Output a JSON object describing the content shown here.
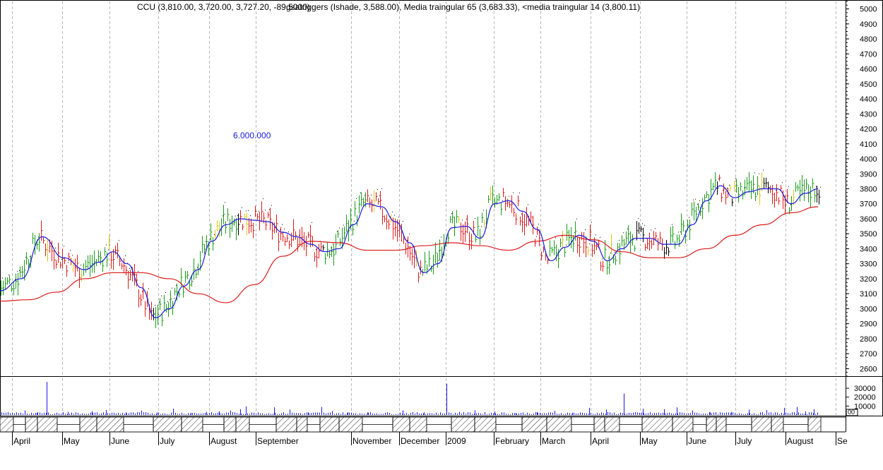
{
  "header": {
    "symbol_line": "CCU (3,810.00, 3,720.00, 3,727.20, -89.5000)",
    "overlay_line": "gsatriggers (Ishade, 3,588.00), Media traingular 65 (3,683.33), <media traingular 14 (3,800.11)"
  },
  "annotation": "6.000.000",
  "chart_data": {
    "type": "line",
    "title": "",
    "price_axis": {
      "ylim": [
        2550,
        5050
      ],
      "ticks": [
        2600,
        2700,
        2800,
        2900,
        3000,
        3100,
        3200,
        3300,
        3400,
        3500,
        3600,
        3700,
        3800,
        3900,
        4000,
        4100,
        4200,
        4300,
        4400,
        4500,
        4600,
        4700,
        4800,
        4900,
        5000
      ]
    },
    "volume_axis": {
      "ticks": [
        10000,
        20000,
        30000
      ],
      "tick_labels": [
        "10000",
        "20000",
        "30000"
      ],
      "corner_label": "00"
    },
    "x_months": [
      "April",
      "May",
      "June",
      "July",
      "August",
      "September",
      "November",
      "December",
      "2009",
      "February",
      "March",
      "April",
      "May",
      "June",
      "July",
      "August",
      "Se"
    ],
    "grid": true,
    "series": [
      {
        "name": "media traingular 14",
        "color": "#1a1add",
        "x": [
          0,
          30,
          60,
          90,
          120,
          140,
          160,
          180,
          200,
          220,
          240,
          260,
          280,
          300,
          320,
          340,
          360,
          380,
          400,
          420,
          440,
          460,
          480,
          500,
          520,
          540,
          560,
          580,
          600,
          620,
          640,
          660,
          680,
          700,
          720,
          740,
          760,
          780,
          800,
          820,
          840,
          860,
          880,
          900,
          920,
          940,
          960,
          980,
          1000,
          1020,
          1040,
          1060,
          1080,
          1100,
          1120,
          1140,
          1158
        ],
        "values": [
          3120,
          3200,
          3480,
          3340,
          3260,
          3310,
          3380,
          3300,
          3140,
          2940,
          3000,
          3150,
          3260,
          3450,
          3560,
          3600,
          3590,
          3580,
          3510,
          3480,
          3430,
          3380,
          3400,
          3560,
          3700,
          3680,
          3580,
          3440,
          3240,
          3300,
          3540,
          3550,
          3470,
          3700,
          3720,
          3650,
          3530,
          3320,
          3410,
          3490,
          3450,
          3320,
          3400,
          3470,
          3470,
          3430,
          3430,
          3560,
          3720,
          3820,
          3740,
          3780,
          3800,
          3800,
          3700,
          3770,
          3800
        ]
      },
      {
        "name": "Media traingular 65",
        "color": "#dd1a1a",
        "x": [
          0,
          40,
          80,
          120,
          160,
          200,
          240,
          280,
          320,
          360,
          400,
          440,
          480,
          520,
          560,
          600,
          640,
          680,
          720,
          760,
          800,
          840,
          880,
          920,
          960,
          1000,
          1040,
          1080,
          1120,
          1158
        ],
        "values": [
          3050,
          3060,
          3110,
          3200,
          3240,
          3240,
          3200,
          3100,
          3040,
          3160,
          3350,
          3450,
          3440,
          3390,
          3390,
          3420,
          3440,
          3420,
          3390,
          3450,
          3490,
          3460,
          3380,
          3340,
          3340,
          3400,
          3490,
          3560,
          3640,
          3680
        ]
      }
    ],
    "volume_bars": {
      "color": "#1a1add",
      "x": [
        8,
        20,
        35,
        52,
        66,
        80,
        96,
        110,
        130,
        150,
        178,
        200,
        222,
        245,
        270,
        292,
        310,
        326,
        340,
        348,
        365,
        388,
        410,
        436,
        455,
        470,
        492,
        520,
        545,
        570,
        600,
        632,
        650,
        672,
        700,
        730,
        760,
        785,
        810,
        834,
        858,
        883,
        910,
        940,
        958,
        980,
        1005,
        1035,
        1060,
        1085,
        1110,
        1128,
        1140,
        1152
      ],
      "values": [
        1500,
        1800,
        5000,
        2200,
        37000,
        2500,
        3500,
        2000,
        4200,
        5500,
        3000,
        4800,
        2800,
        7000,
        2500,
        3500,
        4000,
        5000,
        6500,
        9500,
        3000,
        8500,
        6000,
        3000,
        9000,
        4500,
        3000,
        2800,
        2500,
        5000,
        3000,
        35000,
        3500,
        5200,
        4000,
        2200,
        3200,
        4500,
        2500,
        8000,
        6000,
        24000,
        7000,
        6500,
        8500,
        5000,
        3000,
        3500,
        6000,
        5500,
        8000,
        9000,
        4000,
        6500
      ]
    }
  }
}
